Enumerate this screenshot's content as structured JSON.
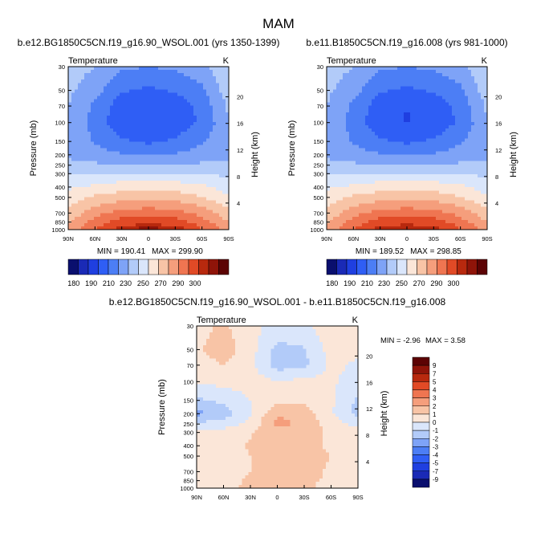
{
  "figure_title": "MAM",
  "chart_data": [
    {
      "type": "heatmap",
      "title": "b.e12.BG1850C5CN.f19_g16.90_WSOL.001 (yrs 1350-1399)",
      "left_string": "Temperature",
      "right_string": "K",
      "xlabel": "",
      "ylabel": "Pressure (mb)",
      "y2label": "Height (km)",
      "x_ticks": [
        "90N",
        "60N",
        "30N",
        "0",
        "30S",
        "60S",
        "90S"
      ],
      "y_ticks": [
        30,
        50,
        70,
        100,
        150,
        200,
        250,
        300,
        400,
        500,
        700,
        850,
        1000
      ],
      "y2_ticks": [
        4,
        8,
        12,
        16,
        20
      ],
      "min_label": "MIN = 190.41",
      "max_label": "MAX = 299.90",
      "min": 190.41,
      "max": 299.9,
      "x": [
        -90,
        -60,
        -30,
        0,
        30,
        60,
        90
      ],
      "p": [
        30,
        50,
        70,
        100,
        150,
        200,
        250,
        300,
        400,
        500,
        700,
        850,
        1000
      ],
      "z": [
        [
          225,
          220,
          212,
          210,
          212,
          216,
          230
        ],
        [
          222,
          214,
          201,
          198,
          201,
          208,
          226
        ],
        [
          220,
          208,
          194,
          191,
          194,
          203,
          222
        ],
        [
          219,
          206,
          193,
          191,
          193,
          202,
          219
        ],
        [
          219,
          209,
          202,
          198,
          202,
          209,
          217
        ],
        [
          219,
          214,
          211,
          209,
          211,
          214,
          218
        ],
        [
          222,
          222,
          221,
          220,
          221,
          222,
          222
        ],
        [
          229,
          230,
          231,
          231,
          231,
          230,
          228
        ],
        [
          238,
          242,
          246,
          247,
          246,
          242,
          235
        ],
        [
          245,
          252,
          256,
          257,
          256,
          251,
          241
        ],
        [
          253,
          266,
          274,
          276,
          274,
          266,
          254
        ],
        [
          259,
          275,
          285,
          287,
          285,
          275,
          260
        ],
        [
          263,
          280,
          296,
          298,
          296,
          281,
          265
        ]
      ]
    },
    {
      "type": "heatmap",
      "title": "b.e11.B1850C5CN.f19_g16.008 (yrs 981-1000)",
      "left_string": "Temperature",
      "right_string": "K",
      "xlabel": "",
      "ylabel": "Pressure (mb)",
      "y2label": "Height (km)",
      "x_ticks": [
        "90N",
        "60N",
        "30N",
        "0",
        "30S",
        "60S",
        "90S"
      ],
      "y_ticks": [
        30,
        50,
        70,
        100,
        150,
        200,
        250,
        300,
        400,
        500,
        700,
        850,
        1000
      ],
      "y2_ticks": [
        4,
        8,
        12,
        16,
        20
      ],
      "min_label": "MIN = 189.52",
      "max_label": "MAX = 298.85",
      "min": 189.52,
      "max": 298.85,
      "x": [
        -90,
        -60,
        -30,
        0,
        30,
        60,
        90
      ],
      "p": [
        30,
        50,
        70,
        100,
        150,
        200,
        250,
        300,
        400,
        500,
        700,
        850,
        1000
      ],
      "z": [
        [
          225,
          220,
          212,
          210,
          212,
          216,
          230
        ],
        [
          222,
          214,
          201,
          198,
          201,
          208,
          226
        ],
        [
          220,
          208,
          194,
          190,
          194,
          203,
          222
        ],
        [
          219,
          206,
          192,
          189.5,
          192,
          202,
          219
        ],
        [
          219,
          209,
          202,
          198,
          202,
          209,
          217
        ],
        [
          219,
          214,
          211,
          209,
          211,
          214,
          218
        ],
        [
          222,
          222,
          221,
          220,
          221,
          222,
          222
        ],
        [
          229,
          230,
          231,
          231,
          231,
          230,
          228
        ],
        [
          238,
          242,
          246,
          247,
          246,
          242,
          235
        ],
        [
          245,
          252,
          256,
          257,
          256,
          251,
          241
        ],
        [
          253,
          266,
          274,
          276,
          274,
          266,
          254
        ],
        [
          259,
          275,
          285,
          287,
          285,
          275,
          260
        ],
        [
          263,
          280,
          295,
          297,
          295,
          281,
          265
        ]
      ]
    },
    {
      "type": "heatmap",
      "title": "b.e12.BG1850C5CN.f19_g16.90_WSOL.001 - b.e11.B1850C5CN.f19_g16.008",
      "left_string": "Temperature",
      "right_string": "K",
      "xlabel": "",
      "ylabel": "Pressure (mb)",
      "y2label": "Height (km)",
      "x_ticks": [
        "90N",
        "60N",
        "30N",
        "0",
        "30S",
        "60S",
        "90S"
      ],
      "y_ticks": [
        30,
        50,
        70,
        100,
        150,
        200,
        250,
        300,
        400,
        500,
        700,
        850,
        1000
      ],
      "y2_ticks": [
        4,
        8,
        12,
        16,
        20
      ],
      "min_label": "MIN =  -2.96",
      "max_label": "MAX =   3.58",
      "min": -2.96,
      "max": 3.58,
      "x": [
        -90,
        -60,
        -30,
        0,
        30,
        60,
        90
      ],
      "p": [
        30,
        50,
        70,
        100,
        150,
        200,
        250,
        300,
        400,
        500,
        700,
        850,
        1000
      ],
      "z": [
        [
          0.6,
          1.2,
          0.3,
          -0.3,
          -0.2,
          0.6,
          0.4
        ],
        [
          0.8,
          1.6,
          0.4,
          -1.3,
          -1.1,
          0.4,
          0.2
        ],
        [
          0.5,
          1.0,
          0.3,
          -1.5,
          -1.3,
          0.3,
          -0.2
        ],
        [
          0.2,
          0.3,
          0.4,
          0.1,
          0.3,
          0.2,
          -0.6
        ],
        [
          -1.2,
          -0.8,
          0.0,
          0.6,
          0.7,
          0.2,
          -1.2
        ],
        [
          -2.3,
          -1.5,
          -0.1,
          1.9,
          1.6,
          0.1,
          -1.4
        ],
        [
          -0.8,
          -0.5,
          0.3,
          2.3,
          1.8,
          0.5,
          -0.3
        ],
        [
          0.2,
          0.4,
          0.9,
          1.7,
          1.4,
          0.8,
          0.3
        ],
        [
          0.5,
          0.6,
          1.1,
          1.4,
          1.2,
          0.9,
          0.5
        ],
        [
          0.6,
          0.7,
          1.0,
          1.3,
          1.3,
          1.0,
          0.6
        ],
        [
          0.6,
          0.8,
          1.0,
          1.1,
          1.2,
          0.9,
          0.4
        ],
        [
          0.6,
          0.8,
          1.1,
          1.2,
          1.3,
          0.8,
          0.5
        ],
        [
          0.7,
          0.9,
          1.1,
          1.2,
          1.2,
          0.6,
          0.5
        ]
      ]
    }
  ],
  "colorbars": {
    "temperature": {
      "orientation": "horizontal",
      "labels": [
        "180",
        "190",
        "210",
        "230",
        "250",
        "270",
        "290",
        "300"
      ],
      "levels": [
        180,
        185,
        190,
        200,
        210,
        220,
        230,
        240,
        250,
        260,
        270,
        280,
        290,
        295,
        300
      ],
      "colors": [
        "#0a0f6e",
        "#1a2ab6",
        "#1f3fe0",
        "#2f5ef5",
        "#4c7ef5",
        "#7ea3f7",
        "#b2cbf9",
        "#dae6fb",
        "#fbe6d8",
        "#f8c4a6",
        "#f59e7c",
        "#ef7551",
        "#e14a26",
        "#b8290e",
        "#8f1409",
        "#5c0304"
      ]
    },
    "difference": {
      "orientation": "vertical",
      "labels": [
        "9",
        "7",
        "5",
        "4",
        "3",
        "2",
        "1",
        "0",
        "-1",
        "-2",
        "-3",
        "-4",
        "-5",
        "-7",
        "-9"
      ],
      "levels": [
        -9,
        -7,
        -5,
        -4,
        -3,
        -2,
        -1,
        0,
        1,
        2,
        3,
        4,
        5,
        7,
        9
      ],
      "colors": [
        "#0a0f6e",
        "#1a2ab6",
        "#1f3fe0",
        "#2f5ef5",
        "#4c7ef5",
        "#7ea3f7",
        "#b2cbf9",
        "#dae6fb",
        "#fbe6d8",
        "#f8c4a6",
        "#f59e7c",
        "#ef7551",
        "#e14a26",
        "#b8290e",
        "#8f1409",
        "#5c0304"
      ]
    }
  }
}
